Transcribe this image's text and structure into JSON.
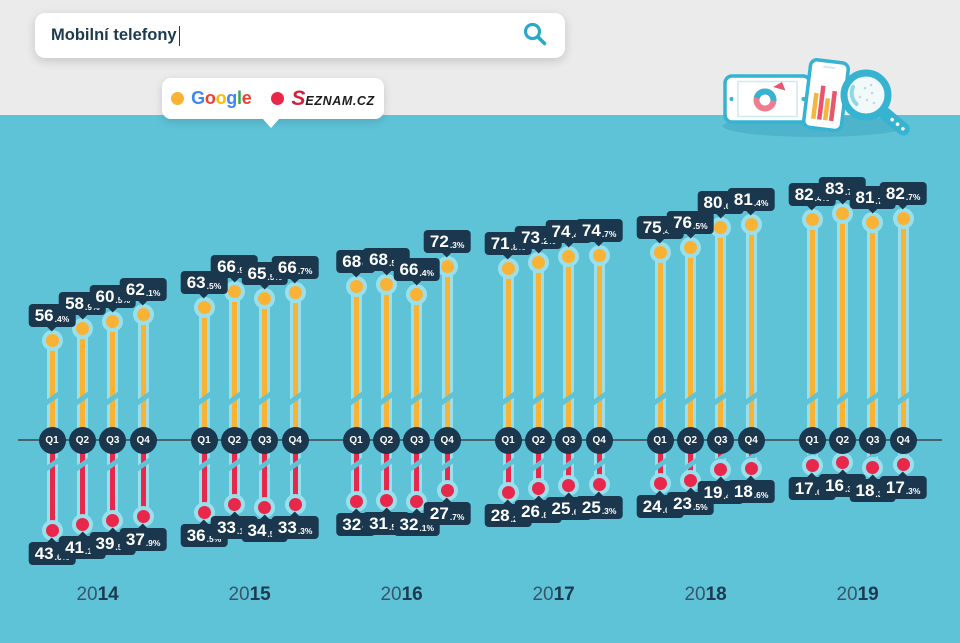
{
  "search": {
    "query": "Mobilní telefony"
  },
  "legend": {
    "items": [
      {
        "name": "Google",
        "dot_color": "#f9b233",
        "letter_colors": [
          "#4285F4",
          "#EA4335",
          "#FBBC05",
          "#4285F4",
          "#34A853",
          "#EA4335"
        ]
      },
      {
        "name": "Seznam.cz",
        "dot_color": "#e8274b",
        "logo_accent": "#d81e3c",
        "logo_text": "#1c1c1c"
      }
    ]
  },
  "colors": {
    "background_top": "#ebebeb",
    "background_chart": "#5fc3d8",
    "label_box": "#1a374d",
    "stem_halo": "#9ae0ec",
    "google": "#f9b233",
    "seznam": "#e8274b",
    "axis_line": "#46646f",
    "search_icon": "#2aa9c9",
    "year_text": "#1d3a4f"
  },
  "chart_data": {
    "type": "lollipop",
    "title": "Mobilní telefony",
    "unit": "%",
    "legend_position": "top",
    "series": [
      {
        "name": "Google",
        "color": "#f9b233",
        "direction": "up"
      },
      {
        "name": "Seznam.cz",
        "color": "#e8274b",
        "direction": "down"
      }
    ],
    "quarter_labels": [
      "Q1",
      "Q2",
      "Q3",
      "Q4"
    ],
    "years": [
      {
        "year": "2014",
        "values": [
          {
            "quarter": "Q1",
            "google": 56.4,
            "seznam": 43.6
          },
          {
            "quarter": "Q2",
            "google": 58.9,
            "seznam": 41.1
          },
          {
            "quarter": "Q3",
            "google": 60.5,
            "seznam": 39.5
          },
          {
            "quarter": "Q4",
            "google": 62.1,
            "seznam": 37.9
          }
        ]
      },
      {
        "year": "2015",
        "values": [
          {
            "quarter": "Q1",
            "google": 63.5,
            "seznam": 36.5
          },
          {
            "quarter": "Q2",
            "google": 66.9,
            "seznam": 33.1
          },
          {
            "quarter": "Q3",
            "google": 65.5,
            "seznam": 34.5
          },
          {
            "quarter": "Q4",
            "google": 66.7,
            "seznam": 33.3
          }
        ]
      },
      {
        "year": "2016",
        "values": [
          {
            "quarter": "Q1",
            "google": 68,
            "seznam": 32
          },
          {
            "quarter": "Q2",
            "google": 68.5,
            "seznam": 31.5
          },
          {
            "quarter": "Q3",
            "google": 66.4,
            "seznam": 32.1
          },
          {
            "quarter": "Q4",
            "google": 72.3,
            "seznam": 27.7
          }
        ]
      },
      {
        "year": "2017",
        "values": [
          {
            "quarter": "Q1",
            "google": 71.8,
            "seznam": 28.2
          },
          {
            "quarter": "Q2",
            "google": 73.2,
            "seznam": 26.8
          },
          {
            "quarter": "Q3",
            "google": 74.4,
            "seznam": 25.6
          },
          {
            "quarter": "Q4",
            "google": 74.7,
            "seznam": 25.3
          }
        ]
      },
      {
        "year": "2018",
        "values": [
          {
            "quarter": "Q1",
            "google": 75.4,
            "seznam": 24.6
          },
          {
            "quarter": "Q2",
            "google": 76.5,
            "seznam": 23.5
          },
          {
            "quarter": "Q3",
            "google": 80.6,
            "seznam": 19.4
          },
          {
            "quarter": "Q4",
            "google": 81.4,
            "seznam": 18.6
          }
        ]
      },
      {
        "year": "2019",
        "values": [
          {
            "quarter": "Q1",
            "google": 82.4,
            "seznam": 17.6
          },
          {
            "quarter": "Q2",
            "google": 83.7,
            "seznam": 16.3
          },
          {
            "quarter": "Q3",
            "google": 81.7,
            "seznam": 18.3
          },
          {
            "quarter": "Q4",
            "google": 82.7,
            "seznam": 17.3
          }
        ]
      }
    ]
  }
}
